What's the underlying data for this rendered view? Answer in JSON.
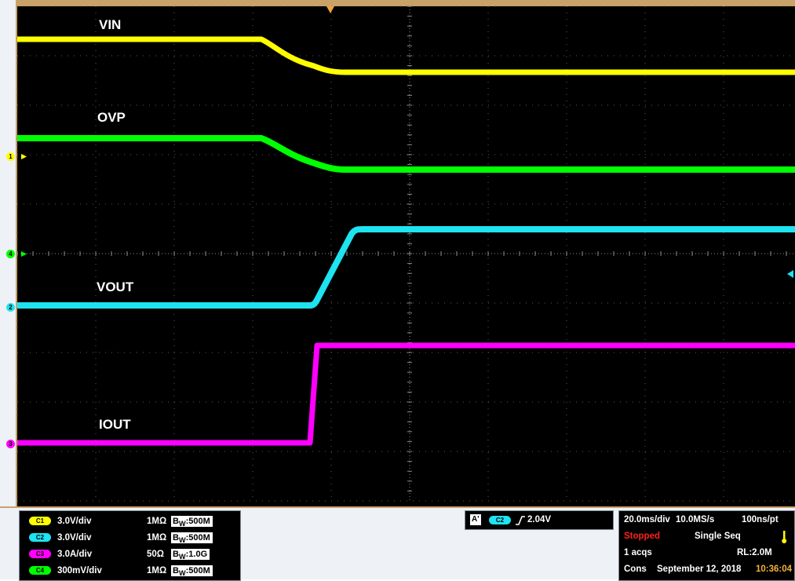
{
  "colors": {
    "ch1": "#ffff00",
    "ch2": "#1ee3f0",
    "ch3": "#ff00ff",
    "ch4": "#00ff00",
    "grid": "#5a5a5a",
    "frame": "#c9a26a",
    "stopped": "#ff2020",
    "clock": "#f3b23c"
  },
  "traces": {
    "vin": {
      "label": "VIN"
    },
    "ovp": {
      "label": "OVP"
    },
    "vout": {
      "label": "VOUT"
    },
    "iout": {
      "label": "IOUT"
    }
  },
  "markers": {
    "m1": "1",
    "m4": "4",
    "m2": "2",
    "m3": "3"
  },
  "channels": [
    {
      "pill": "C1",
      "scale": "3.0V/div",
      "impedance": "1MΩ",
      "bw": "500M",
      "color": "#ffff00"
    },
    {
      "pill": "C2",
      "scale": "3.0V/div",
      "impedance": "1MΩ",
      "bw": "500M",
      "color": "#1ee3f0"
    },
    {
      "pill": "C3",
      "scale": "3.0A/div",
      "impedance": "50Ω",
      "bw": "1.0G",
      "color": "#ff00ff"
    },
    {
      "pill": "C4",
      "scale": "300mV/div",
      "impedance": "1MΩ",
      "bw": "500M",
      "color": "#00ff00"
    }
  ],
  "bw_prefix": "B",
  "bw_sub": "W",
  "trigger": {
    "badge": "A'",
    "source": "C2",
    "level": "2.04V"
  },
  "timebase": {
    "scale": "20.0ms/div",
    "rate": "10.0MS/s",
    "resolution": "100ns/pt",
    "state": "Stopped",
    "mode": "Single Seq",
    "acqs": "1 acqs",
    "record": "RL:2.0M",
    "cons": "Cons",
    "date": "September 12, 2018",
    "time": "10:36:04"
  }
}
